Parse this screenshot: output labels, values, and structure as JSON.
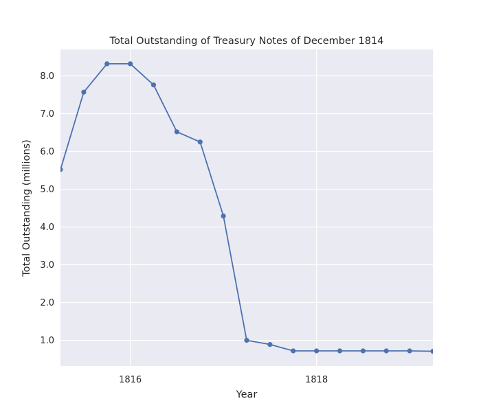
{
  "chart_data": {
    "type": "line",
    "title": "Total Outstanding of Treasury Notes of December 1814",
    "xlabel": "Year",
    "ylabel": "Total Outstanding (millions)",
    "x_tick_labels": [
      "1816",
      "1818"
    ],
    "x_ticks": [
      1816,
      1818
    ],
    "y_tick_labels": [
      "1.0",
      "2.0",
      "3.0",
      "4.0",
      "5.0",
      "6.0",
      "7.0",
      "8.0"
    ],
    "y_ticks": [
      1,
      2,
      3,
      4,
      5,
      6,
      7,
      8
    ],
    "xlim": [
      1815.25,
      1819.25
    ],
    "ylim": [
      0.32,
      8.7
    ],
    "grid": true,
    "colors": {
      "line": "#4c72b0",
      "plot_bg": "#eaeaf2",
      "grid": "#ffffff"
    },
    "series": [
      {
        "x": [
          1815.25,
          1815.5,
          1815.75,
          1816.0,
          1816.25,
          1816.5,
          1816.75,
          1817.0,
          1817.25,
          1817.5,
          1817.75,
          1818.0,
          1818.25,
          1818.5,
          1818.75,
          1819.0,
          1819.25
        ],
        "values": [
          5.52,
          7.57,
          8.32,
          8.32,
          7.76,
          6.52,
          6.25,
          4.29,
          1.0,
          0.89,
          0.72,
          0.72,
          0.72,
          0.72,
          0.72,
          0.72,
          0.71
        ]
      }
    ]
  }
}
